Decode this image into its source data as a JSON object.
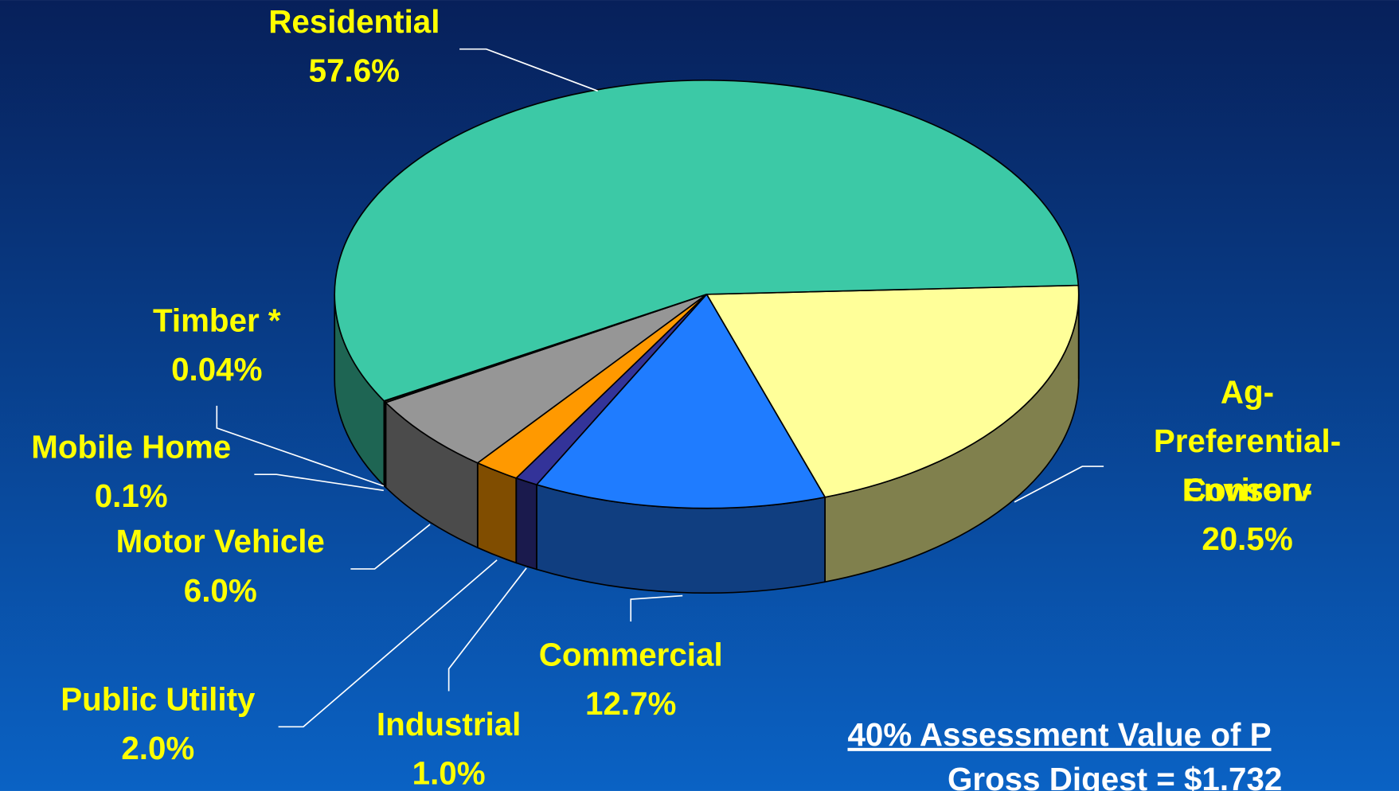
{
  "chart_data": {
    "type": "pie3d",
    "categories": [
      "Ag-Preferential-Environ-Conserv",
      "Commercial",
      "Industrial",
      "Public Utility",
      "Motor Vehicle",
      "Mobile Home",
      "Timber *",
      "Residential"
    ],
    "values": [
      20.5,
      12.7,
      1.0,
      2.0,
      6.0,
      0.1,
      0.04,
      57.6
    ],
    "value_labels": [
      "20.5%",
      "12.7%",
      "1.0%",
      "2.0%",
      "6.0%",
      "0.1%",
      "0.04%",
      "57.6%"
    ],
    "colors": [
      "#ffff99",
      "#1f7cff",
      "#333399",
      "#ff9900",
      "#969696",
      "#ffff99",
      "#99cc00",
      "#3cc9a6"
    ],
    "notes": [
      "40% Assessment Value of P",
      "Gross Digest = $1.732"
    ]
  }
}
